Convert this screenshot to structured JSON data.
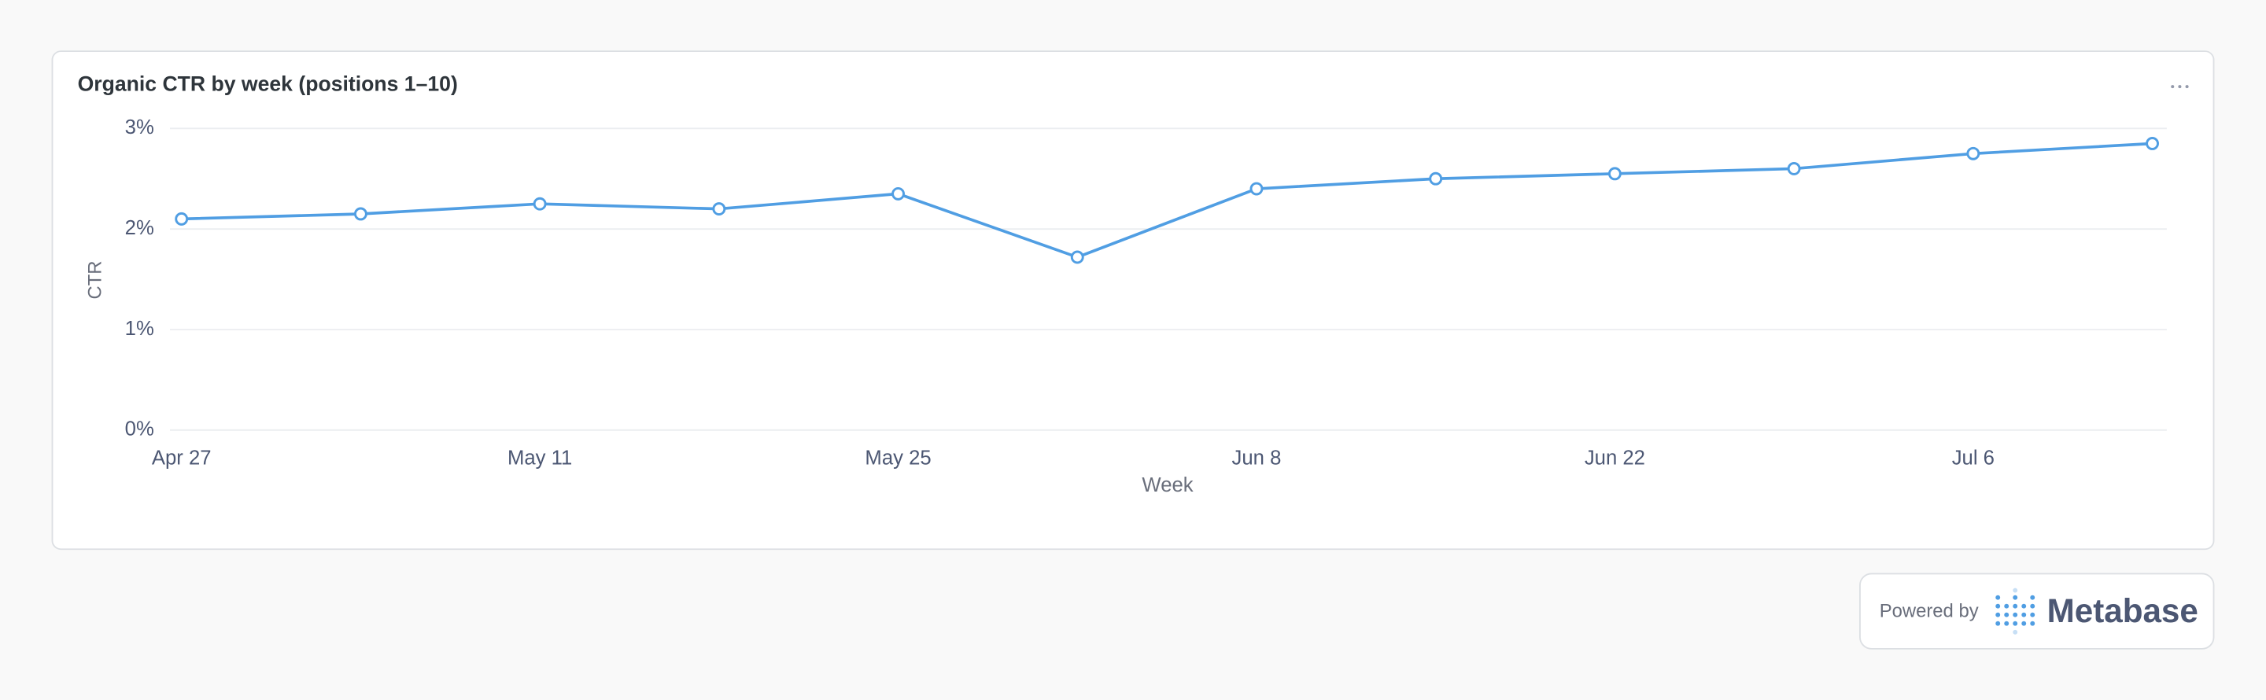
{
  "chart_data": {
    "type": "line",
    "title": "Organic CTR by week (positions 1–10)",
    "x_label": "Week",
    "y_label": "CTR",
    "categories": [
      "Apr 27",
      null,
      "May 11",
      null,
      "May 25",
      null,
      "Jun 8",
      null,
      "Jun 22",
      null,
      "Jul 6",
      null
    ],
    "values": [
      2.1,
      2.15,
      2.25,
      2.2,
      2.35,
      1.72,
      2.4,
      2.5,
      2.55,
      2.6,
      2.75,
      2.85
    ],
    "color": "#509ee3",
    "ylim": [
      0,
      3
    ],
    "yticks": [
      {
        "value": 0,
        "label": "0%"
      },
      {
        "value": 1,
        "label": "1%"
      },
      {
        "value": 2,
        "label": "2%"
      },
      {
        "value": 3,
        "label": "3%"
      }
    ],
    "grid": true
  },
  "footer": {
    "powered_by": "Powered by",
    "brand": "Metabase"
  }
}
